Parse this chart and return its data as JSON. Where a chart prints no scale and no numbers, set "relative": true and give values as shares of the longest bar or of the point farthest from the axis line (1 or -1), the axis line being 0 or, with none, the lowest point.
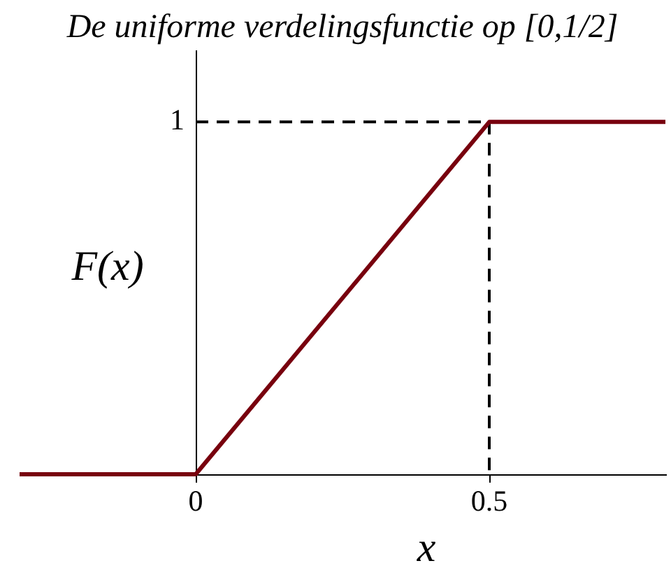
{
  "chart_data": {
    "type": "line",
    "title": "De uniforme verdelingsfunctie op [0,1/2]",
    "xlabel": "x",
    "ylabel": "F(x)",
    "relative": true,
    "series": [
      {
        "color": "#78000e",
        "x": [
          -0.3,
          0,
          0.5,
          0.8
        ],
        "values": [
          0,
          0,
          1,
          1
        ]
      },
      {
        "color": "#000000",
        "x": [
          0,
          0.5,
          0.5
        ],
        "values": [
          1,
          1,
          0
        ],
        "line_style": "dashed"
      }
    ],
    "xlim": [
      -0.3,
      0.8
    ],
    "xticks": [
      0,
      0.5
    ],
    "annotations": [
      {
        "text": "1",
        "x": 0,
        "y": 1
      }
    ]
  }
}
